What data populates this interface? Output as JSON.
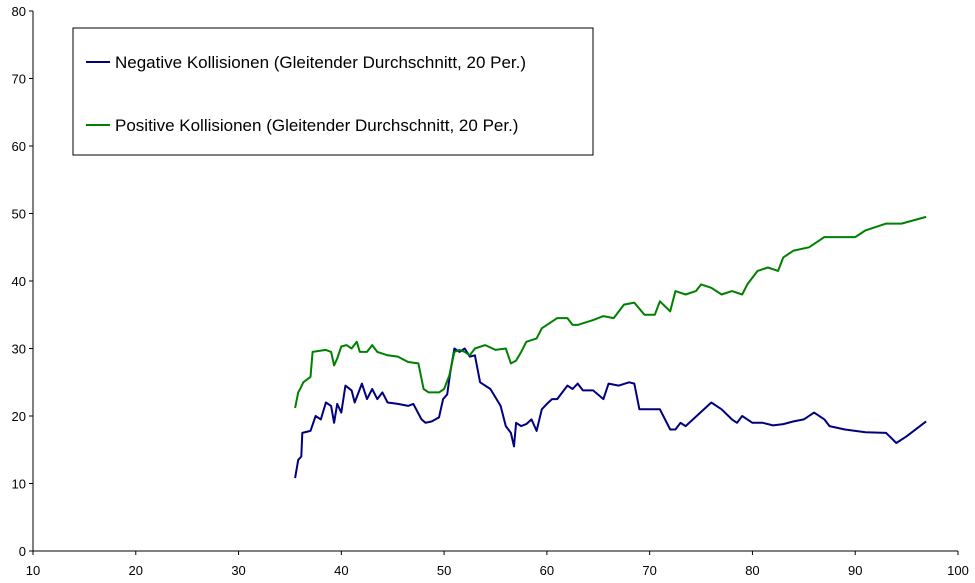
{
  "chart_data": {
    "type": "line",
    "title": "",
    "xlabel": "",
    "ylabel": "",
    "xlim": [
      10,
      100
    ],
    "ylim": [
      0,
      80
    ],
    "x_ticks": [
      10,
      20,
      30,
      40,
      50,
      60,
      70,
      80,
      90,
      100
    ],
    "y_ticks": [
      0,
      10,
      20,
      30,
      40,
      50,
      60,
      70,
      80
    ],
    "grid": false,
    "legend_position": "top-left",
    "series": [
      {
        "name": "Negative Kollisionen (Gleitender Durchschnitt, 20 Per.)",
        "color": "#000080",
        "points": [
          [
            35.5,
            10.8
          ],
          [
            35.8,
            13.5
          ],
          [
            36.1,
            14.0
          ],
          [
            36.2,
            17.5
          ],
          [
            37.0,
            17.8
          ],
          [
            37.5,
            20.0
          ],
          [
            38.0,
            19.5
          ],
          [
            38.5,
            22.0
          ],
          [
            39.0,
            21.5
          ],
          [
            39.3,
            19.0
          ],
          [
            39.6,
            21.8
          ],
          [
            40.0,
            20.5
          ],
          [
            40.4,
            24.5
          ],
          [
            41.0,
            23.8
          ],
          [
            41.3,
            22.0
          ],
          [
            42.0,
            24.8
          ],
          [
            42.5,
            22.5
          ],
          [
            43.0,
            24.0
          ],
          [
            43.5,
            22.5
          ],
          [
            44.0,
            23.5
          ],
          [
            44.5,
            22.0
          ],
          [
            45.5,
            21.8
          ],
          [
            46.5,
            21.5
          ],
          [
            47.0,
            21.8
          ],
          [
            47.8,
            19.5
          ],
          [
            48.2,
            19.0
          ],
          [
            48.8,
            19.2
          ],
          [
            49.5,
            19.8
          ],
          [
            49.9,
            22.5
          ],
          [
            50.3,
            23.2
          ],
          [
            50.6,
            26.5
          ],
          [
            51.0,
            30.0
          ],
          [
            51.5,
            29.5
          ],
          [
            52.0,
            30.0
          ],
          [
            52.5,
            28.8
          ],
          [
            53.0,
            29.0
          ],
          [
            53.5,
            25.0
          ],
          [
            54.5,
            24.0
          ],
          [
            55.5,
            21.5
          ],
          [
            56.0,
            18.5
          ],
          [
            56.5,
            17.5
          ],
          [
            56.8,
            15.5
          ],
          [
            57.0,
            19.0
          ],
          [
            57.5,
            18.5
          ],
          [
            58.0,
            18.8
          ],
          [
            58.5,
            19.5
          ],
          [
            59.0,
            17.8
          ],
          [
            59.5,
            21.0
          ],
          [
            60.0,
            21.8
          ],
          [
            60.5,
            22.5
          ],
          [
            61.0,
            22.5
          ],
          [
            62.0,
            24.5
          ],
          [
            62.5,
            24.0
          ],
          [
            63.0,
            24.8
          ],
          [
            63.5,
            23.8
          ],
          [
            64.5,
            23.8
          ],
          [
            65.5,
            22.5
          ],
          [
            66.0,
            24.8
          ],
          [
            67.0,
            24.5
          ],
          [
            68.0,
            25.0
          ],
          [
            68.5,
            24.8
          ],
          [
            69.0,
            21.0
          ],
          [
            70.0,
            21.0
          ],
          [
            71.0,
            21.0
          ],
          [
            72.0,
            18.0
          ],
          [
            72.5,
            18.0
          ],
          [
            73.0,
            19.0
          ],
          [
            73.5,
            18.5
          ],
          [
            74.0,
            19.2
          ],
          [
            76.0,
            22.0
          ],
          [
            77.0,
            21.0
          ],
          [
            78.0,
            19.5
          ],
          [
            78.5,
            19.0
          ],
          [
            79.0,
            20.0
          ],
          [
            80.0,
            19.0
          ],
          [
            81.0,
            19.0
          ],
          [
            82.0,
            18.6
          ],
          [
            83.0,
            18.8
          ],
          [
            84.0,
            19.2
          ],
          [
            85.0,
            19.5
          ],
          [
            86.0,
            20.5
          ],
          [
            87.0,
            19.5
          ],
          [
            87.5,
            18.5
          ],
          [
            89.0,
            18.0
          ],
          [
            91.0,
            17.6
          ],
          [
            93.0,
            17.5
          ],
          [
            94.0,
            16.0
          ],
          [
            95.0,
            17.0
          ],
          [
            96.9,
            19.2
          ]
        ]
      },
      {
        "name": "Positive Kollisionen (Gleitender Durchschnitt, 20 Per.)",
        "color": "#008000",
        "points": [
          [
            35.5,
            21.2
          ],
          [
            35.8,
            23.5
          ],
          [
            36.0,
            24.0
          ],
          [
            36.3,
            25.0
          ],
          [
            37.0,
            25.8
          ],
          [
            37.2,
            29.5
          ],
          [
            38.5,
            29.8
          ],
          [
            39.0,
            29.5
          ],
          [
            39.3,
            27.5
          ],
          [
            39.6,
            28.5
          ],
          [
            40.0,
            30.3
          ],
          [
            40.5,
            30.5
          ],
          [
            41.0,
            30.0
          ],
          [
            41.5,
            31.0
          ],
          [
            41.8,
            29.5
          ],
          [
            42.5,
            29.5
          ],
          [
            43.0,
            30.5
          ],
          [
            43.5,
            29.5
          ],
          [
            44.5,
            29.0
          ],
          [
            45.5,
            28.8
          ],
          [
            46.5,
            28.0
          ],
          [
            47.5,
            27.8
          ],
          [
            48.0,
            24.0
          ],
          [
            48.5,
            23.5
          ],
          [
            49.5,
            23.5
          ],
          [
            50.0,
            24.0
          ],
          [
            50.5,
            26.0
          ],
          [
            51.0,
            29.5
          ],
          [
            51.5,
            29.8
          ],
          [
            52.0,
            29.5
          ],
          [
            52.5,
            29.0
          ],
          [
            53.0,
            30.0
          ],
          [
            54.0,
            30.5
          ],
          [
            55.0,
            29.8
          ],
          [
            56.0,
            30.0
          ],
          [
            56.5,
            27.8
          ],
          [
            57.0,
            28.2
          ],
          [
            57.5,
            29.5
          ],
          [
            58.0,
            31.0
          ],
          [
            59.0,
            31.5
          ],
          [
            59.5,
            33.0
          ],
          [
            60.0,
            33.5
          ],
          [
            61.0,
            34.5
          ],
          [
            62.0,
            34.5
          ],
          [
            62.5,
            33.5
          ],
          [
            63.0,
            33.5
          ],
          [
            64.5,
            34.2
          ],
          [
            65.5,
            34.8
          ],
          [
            66.5,
            34.5
          ],
          [
            67.5,
            36.5
          ],
          [
            68.5,
            36.8
          ],
          [
            69.5,
            35.0
          ],
          [
            70.5,
            35.0
          ],
          [
            71.0,
            37.0
          ],
          [
            72.0,
            35.5
          ],
          [
            72.5,
            38.5
          ],
          [
            73.5,
            38.0
          ],
          [
            74.5,
            38.5
          ],
          [
            75.0,
            39.5
          ],
          [
            76.0,
            39.0
          ],
          [
            77.0,
            38.0
          ],
          [
            78.0,
            38.5
          ],
          [
            79.0,
            38.0
          ],
          [
            79.5,
            39.5
          ],
          [
            80.5,
            41.5
          ],
          [
            81.5,
            42.0
          ],
          [
            82.5,
            41.5
          ],
          [
            83.0,
            43.5
          ],
          [
            84.0,
            44.5
          ],
          [
            85.5,
            45.0
          ],
          [
            87.0,
            46.5
          ],
          [
            90.0,
            46.5
          ],
          [
            91.0,
            47.5
          ],
          [
            93.0,
            48.5
          ],
          [
            94.5,
            48.5
          ],
          [
            96.9,
            49.5
          ]
        ]
      }
    ]
  }
}
